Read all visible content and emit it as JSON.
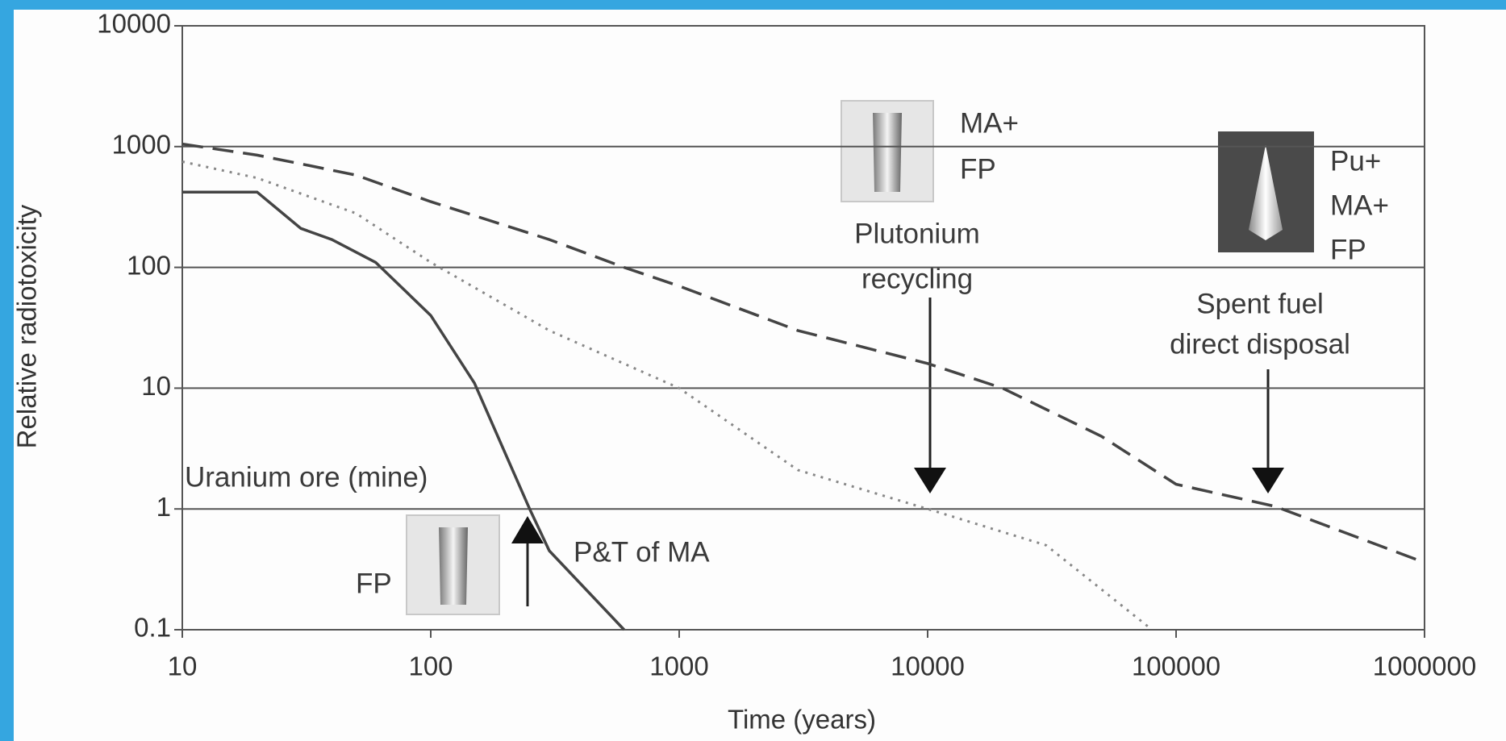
{
  "chart_data": {
    "type": "line",
    "xlabel": "Time (years)",
    "ylabel": "Relative radiotoxicity",
    "xscale": "log",
    "yscale": "log",
    "xlim": [
      10,
      1000000
    ],
    "ylim": [
      0.1,
      10000
    ],
    "xticks": [
      10,
      100,
      1000,
      10000,
      100000,
      1000000
    ],
    "yticks": [
      0.1,
      1,
      10,
      100,
      1000,
      10000
    ],
    "grid": true,
    "series": [
      {
        "color": "#444444",
        "dash": "solid",
        "x": [
          10,
          20,
          30,
          40,
          60,
          100,
          150,
          250,
          300,
          600
        ],
        "values": [
          420,
          420,
          210,
          170,
          110,
          40,
          11,
          1,
          0.45,
          0.1
        ]
      },
      {
        "color": "#888888",
        "dash": "dotted",
        "x": [
          10,
          20,
          50,
          100,
          300,
          1000,
          3000,
          10000,
          30000,
          80000
        ],
        "values": [
          750,
          550,
          280,
          110,
          30,
          10,
          2.1,
          1,
          0.5,
          0.1
        ]
      },
      {
        "color": "#444444",
        "dash": "dashed",
        "x": [
          10,
          20,
          30,
          50,
          100,
          300,
          600,
          1000,
          3000,
          10000,
          20000,
          50000,
          100000,
          250000,
          1000000
        ],
        "values": [
          1050,
          850,
          720,
          580,
          350,
          170,
          100,
          70,
          30,
          16,
          10,
          4,
          1.6,
          1.05,
          0.36
        ]
      }
    ],
    "annotations": [
      {
        "lines": [
          "MA+",
          "FP"
        ]
      },
      {
        "lines": [
          "Plutonium",
          "recycling"
        ]
      },
      {
        "lines": [
          "Pu+",
          "MA+",
          "FP"
        ]
      },
      {
        "lines": [
          "Spent fuel",
          "direct disposal"
        ]
      },
      {
        "lines": [
          "Uranium ore (mine)"
        ]
      },
      {
        "lines": [
          "P&T of MA"
        ]
      },
      {
        "lines": [
          "FP"
        ]
      }
    ]
  }
}
